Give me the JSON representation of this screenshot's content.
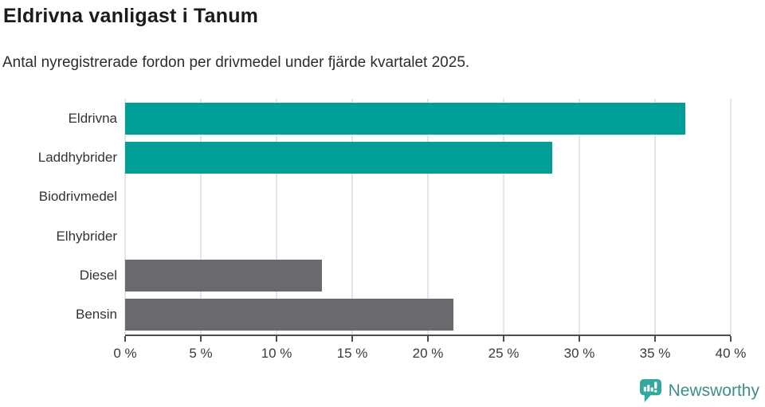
{
  "header": {
    "title": "Eldrivna vanligast i Tanum",
    "subtitle": "Antal nyregistrerade fordon per drivmedel under fjärde kvartalet 2025."
  },
  "chart_data": {
    "type": "bar",
    "orientation": "horizontal",
    "title": "Eldrivna vanligast i Tanum",
    "subtitle": "Antal nyregistrerade fordon per drivmedel under fjärde kvartalet 2025.",
    "categories": [
      "Eldrivna",
      "Laddhybrider",
      "Biodrivmedel",
      "Elhybrider",
      "Diesel",
      "Bensin"
    ],
    "values": [
      37.0,
      28.2,
      0,
      0,
      13.0,
      21.7
    ],
    "unit": "%",
    "bar_colors": [
      "#009e96",
      "#009e96",
      "#009e96",
      "#009e96",
      "#6a6a6e",
      "#6a6a6e"
    ],
    "xlabel": "",
    "ylabel": "",
    "xlim": [
      0,
      40
    ],
    "x_ticks": [
      0,
      5,
      10,
      15,
      20,
      25,
      30,
      35,
      40
    ],
    "x_tick_labels": [
      "0 %",
      "5 %",
      "10 %",
      "15 %",
      "20 %",
      "25 %",
      "30 %",
      "35 %",
      "40 %"
    ],
    "grid": "vertical",
    "legend": "none"
  },
  "footer": {
    "brand": "Newsworthy",
    "logo_icon": "newsworthy-speech-bubble-barchart-icon"
  },
  "colors": {
    "accent_teal": "#009e96",
    "neutral_gray": "#6a6a6e",
    "brand_bubble": "#35a79f",
    "brand_text": "#3e8e89",
    "axis": "#4d4d4d",
    "gridline": "#e5e5e5"
  }
}
